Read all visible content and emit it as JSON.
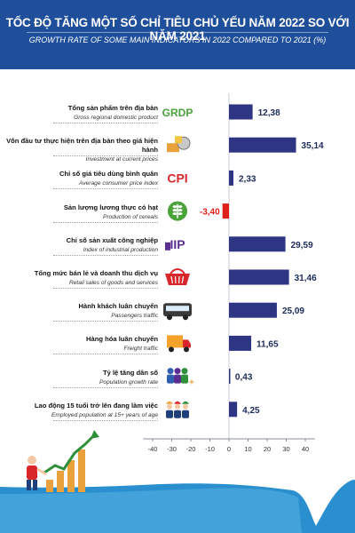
{
  "header": {
    "title": "TỐC ĐỘ TĂNG MỘT SỐ CHỈ TIÊU CHỦ YẾU NĂM 2022 SO VỚI NĂM 2021",
    "subtitle": "GROWTH RATE OF SOME MAIN INDICATORS IN 2022 COMPARED TO 2021 (%)"
  },
  "colors": {
    "header_bg": "#1f4f9b",
    "bar_positive": "#2e3583",
    "bar_negative": "#e0201b",
    "footer_wave": "#2a8fcf",
    "icon_green": "#4aa23a",
    "icon_purple": "#5a2d91"
  },
  "icons": [
    "grdp-icon",
    "investment-icon",
    "cpi-icon",
    "cereal-icon",
    "iip-icon",
    "retail-basket-icon",
    "bus-icon",
    "truck-icon",
    "population-icon",
    "workers-icon"
  ],
  "chart_data": {
    "type": "bar",
    "orientation": "horizontal",
    "categories": [
      {
        "vi": "Tổng sản phẩm trên địa bàn",
        "en": "Gross regional domestic product",
        "icon_text": "GRDP"
      },
      {
        "vi": "Vốn đầu tư thực hiện trên địa bàn theo giá hiện hành",
        "en": "Investment at current prices",
        "icon_text": ""
      },
      {
        "vi": "Chỉ số giá tiêu dùng bình quân",
        "en": "Average consumer price index",
        "icon_text": "CPI"
      },
      {
        "vi": "Sản lượng lương thực có hạt",
        "en": "Production of cereals",
        "icon_text": ""
      },
      {
        "vi": "Chỉ số sản xuất công nghiệp",
        "en": "Index of industrial production",
        "icon_text": "IIP"
      },
      {
        "vi": "Tổng mức bán lẻ và doanh thu dịch vụ",
        "en": "Retail sales of goods and services",
        "icon_text": ""
      },
      {
        "vi": "Hành khách luân chuyển",
        "en": "Passengers traffic",
        "icon_text": ""
      },
      {
        "vi": "Hàng hóa luân chuyển",
        "en": "Freight traffic",
        "icon_text": ""
      },
      {
        "vi": "Tỷ lệ tăng dân số",
        "en": "Population growth rate",
        "icon_text": ""
      },
      {
        "vi": "Lao động 15 tuổi trở lên đang làm việc",
        "en": "Employed population at 15+ years of age",
        "icon_text": ""
      }
    ],
    "values": [
      12.38,
      35.14,
      2.33,
      -3.4,
      29.59,
      31.46,
      25.09,
      11.65,
      0.43,
      4.25
    ],
    "value_labels": [
      "12,38",
      "35,14",
      "2,33",
      "-3,40",
      "29,59",
      "31,46",
      "25,09",
      "11,65",
      "0,43",
      "4,25"
    ],
    "xlim": [
      -45,
      45
    ],
    "xticks": [
      -40,
      -30,
      -20,
      -10,
      0,
      10,
      20,
      30,
      40
    ],
    "grid": false,
    "legend": "none"
  }
}
